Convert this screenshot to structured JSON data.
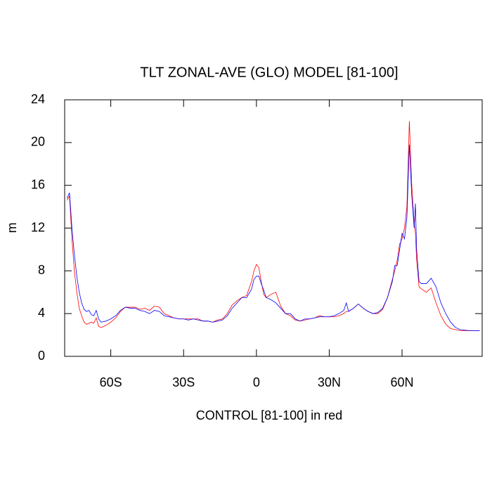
{
  "chart_data": {
    "type": "line",
    "title": "TLT ZONAL-AVE (GLO) MODEL [81-100]",
    "x_label": "CONTROL [81-100] in red",
    "y_label": "m",
    "x": [
      -78,
      -77,
      -76,
      -75,
      -74,
      -73,
      -72,
      -71,
      -70,
      -69,
      -68,
      -67,
      -66,
      -65,
      -64,
      -62,
      -60,
      -58,
      -56,
      -54,
      -52,
      -50,
      -48,
      -46,
      -44,
      -42,
      -40,
      -38,
      -36,
      -34,
      -32,
      -30,
      -28,
      -26,
      -24,
      -22,
      -20,
      -18,
      -16,
      -14,
      -12,
      -10,
      -8,
      -6,
      -4,
      -2,
      -1,
      0,
      1,
      2,
      3,
      4,
      6,
      8,
      10,
      12,
      14,
      16,
      18,
      20,
      22,
      24,
      26,
      28,
      30,
      32,
      34,
      36,
      37,
      38,
      40,
      42,
      44,
      46,
      48,
      50,
      52,
      54,
      56,
      57,
      58,
      59,
      60,
      61,
      62,
      63,
      64,
      65,
      65.5,
      66,
      67,
      68,
      70,
      72,
      74,
      76,
      78,
      80,
      82,
      84,
      86,
      88,
      90,
      92
    ],
    "series": [
      {
        "color": "#ff0000",
        "values": [
          14.6,
          15,
          11,
          8,
          6,
          4.5,
          3.8,
          3.2,
          3.0,
          3.1,
          3.2,
          3.1,
          3.6,
          2.8,
          2.7,
          2.9,
          3.2,
          3.6,
          4.2,
          4.6,
          4.6,
          4.6,
          4.4,
          4.5,
          4.3,
          4.7,
          4.6,
          4.0,
          3.8,
          3.6,
          3.5,
          3.5,
          3.5,
          3.5,
          3.5,
          3.3,
          3.3,
          3.2,
          3.4,
          3.5,
          4.0,
          4.8,
          5.2,
          5.5,
          5.7,
          7.0,
          8.0,
          8.6,
          8.3,
          7.0,
          5.8,
          5.5,
          5.8,
          6.0,
          4.7,
          4.0,
          3.8,
          3.4,
          3.3,
          3.4,
          3.5,
          3.6,
          3.8,
          3.7,
          3.7,
          3.7,
          3.8,
          4.0,
          4.2,
          4.2,
          4.5,
          4.9,
          4.5,
          4.2,
          4.0,
          4.0,
          4.4,
          5.5,
          7.2,
          8.0,
          9,
          10.5,
          11,
          12,
          14,
          22,
          16,
          12.5,
          11.5,
          9,
          6.5,
          6.3,
          6,
          6.4,
          5,
          3.8,
          3,
          2.6,
          2.5,
          2.4,
          2.4,
          2.4,
          2.4,
          2.4
        ]
      },
      {
        "color": "#0000ff",
        "values": [
          14.8,
          15.3,
          12,
          9.5,
          7.5,
          6,
          5,
          4.4,
          4.2,
          4.3,
          3.9,
          3.8,
          4.3,
          3.5,
          3.2,
          3.3,
          3.5,
          3.8,
          4.3,
          4.6,
          4.5,
          4.5,
          4.3,
          4.2,
          4.0,
          4.3,
          4.2,
          3.8,
          3.7,
          3.6,
          3.5,
          3.5,
          3.4,
          3.5,
          3.4,
          3.3,
          3.3,
          3.2,
          3.3,
          3.4,
          3.8,
          4.5,
          5.0,
          5.5,
          5.5,
          6.3,
          7.2,
          7.5,
          7.5,
          6.8,
          6.2,
          5.5,
          5.3,
          5.0,
          4.5,
          4.0,
          4.0,
          3.5,
          3.3,
          3.5,
          3.5,
          3.6,
          3.7,
          3.7,
          3.7,
          3.8,
          4.0,
          4.3,
          5.0,
          4.2,
          4.5,
          4.9,
          4.5,
          4.2,
          4.0,
          4.1,
          4.5,
          5.5,
          7.0,
          8.5,
          8.5,
          10,
          11.5,
          11,
          13,
          19.8,
          15,
          12,
          14.3,
          10,
          7,
          6.8,
          6.8,
          7.3,
          6.5,
          5,
          4,
          3.2,
          2.7,
          2.5,
          2.45,
          2.4,
          2.4,
          2.4
        ]
      }
    ],
    "xlim": [
      -79,
      93
    ],
    "xticks": [
      {
        "value": -60,
        "label": "60S"
      },
      {
        "value": -30,
        "label": "30S"
      },
      0,
      {
        "value": 30,
        "label": "30N"
      },
      {
        "value": 60,
        "label": "60N"
      }
    ],
    "ylim": [
      0,
      24
    ],
    "yticks": [
      0,
      4,
      8,
      12,
      16,
      20,
      24
    ]
  }
}
